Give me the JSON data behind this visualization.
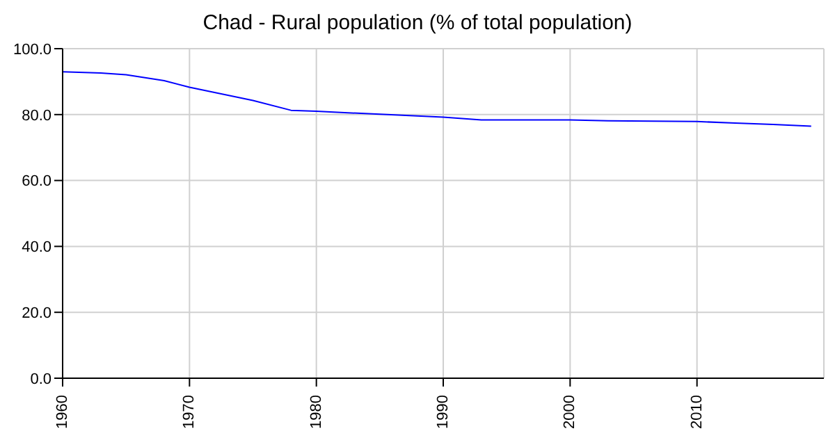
{
  "chart_data": {
    "type": "line",
    "title": "Chad - Rural population (% of total population)",
    "x": [
      1960,
      1963,
      1965,
      1968,
      1970,
      1975,
      1978,
      1980,
      1985,
      1990,
      1993,
      2000,
      2003,
      2010,
      2013,
      2016,
      2019
    ],
    "series": [
      {
        "color": "#0000ff",
        "values": [
          93.0,
          92.6,
          92.1,
          90.3,
          88.3,
          84.3,
          81.3,
          81.0,
          80.1,
          79.2,
          78.4,
          78.4,
          78.1,
          77.9,
          77.4,
          77.0,
          76.5
        ]
      }
    ],
    "xlim": [
      1960,
      2020
    ],
    "xticks": [
      1960,
      1970,
      1980,
      1990,
      2000,
      2010
    ],
    "ylim": [
      0,
      100
    ],
    "yticks": [
      {
        "value": 0,
        "label": "0.0"
      },
      {
        "value": 20,
        "label": "20.0"
      },
      {
        "value": 40,
        "label": "40.0"
      },
      {
        "value": 60,
        "label": "60.0"
      },
      {
        "value": 80,
        "label": "80.0"
      },
      {
        "value": 100,
        "label": "100.0"
      }
    ],
    "grid": true,
    "marker": "none",
    "line_style": "solid"
  }
}
